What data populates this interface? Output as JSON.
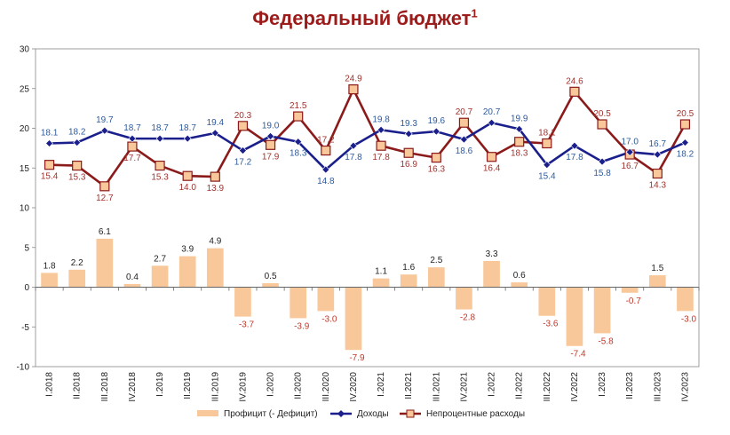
{
  "title": "Федеральный бюджет",
  "title_footnote": "1",
  "chart_data": {
    "type": "bar+line",
    "categories": [
      "I.2018",
      "II.2018",
      "III.2018",
      "IV.2018",
      "I.2019",
      "II.2019",
      "III.2019",
      "IV.2019",
      "I.2020",
      "II.2020",
      "III.2020",
      "IV.2020",
      "I.2021",
      "II.2021",
      "III.2021",
      "IV.2021",
      "I.2022",
      "II.2022",
      "III.2022",
      "IV.2022",
      "I.2023",
      "II.2023",
      "III.2023",
      "IV.2023"
    ],
    "ylim": [
      -10,
      30
    ],
    "yticks": [
      -10,
      -5,
      0,
      5,
      10,
      15,
      20,
      25,
      30
    ],
    "grid": false,
    "legend_position": "bottom",
    "series": [
      {
        "name": "Профицит (- Дефицит)",
        "kind": "bar",
        "color": "#f9c89a",
        "label_color_pos": "#222222",
        "label_color_neg": "#c0392b",
        "values": [
          1.8,
          2.2,
          6.1,
          0.4,
          2.7,
          3.9,
          4.9,
          -3.7,
          0.5,
          -3.9,
          -3.0,
          -7.9,
          1.1,
          1.6,
          2.5,
          -2.8,
          3.3,
          0.6,
          -3.6,
          -7.4,
          -5.8,
          -0.7,
          1.5,
          -3.0
        ]
      },
      {
        "name": "Доходы",
        "kind": "line",
        "color": "#1a1f8c",
        "label_color": "#2d5a9c",
        "values": [
          18.1,
          18.2,
          19.7,
          18.7,
          18.7,
          18.7,
          19.4,
          17.2,
          19.0,
          18.3,
          14.8,
          17.8,
          19.8,
          19.3,
          19.6,
          18.6,
          20.7,
          19.9,
          15.4,
          17.8,
          15.8,
          17.0,
          16.7,
          18.2
        ]
      },
      {
        "name": "Непроцентные расходы",
        "kind": "line",
        "color": "#8b1a1a",
        "marker_fill": "#f9c89a",
        "label_color": "#a0342f",
        "values": [
          15.4,
          15.3,
          12.7,
          17.7,
          15.3,
          14.0,
          13.9,
          20.3,
          17.9,
          21.5,
          17.2,
          24.9,
          17.8,
          16.9,
          16.3,
          20.7,
          16.4,
          18.3,
          18.1,
          24.6,
          20.5,
          16.7,
          14.3,
          20.5
        ]
      }
    ]
  }
}
